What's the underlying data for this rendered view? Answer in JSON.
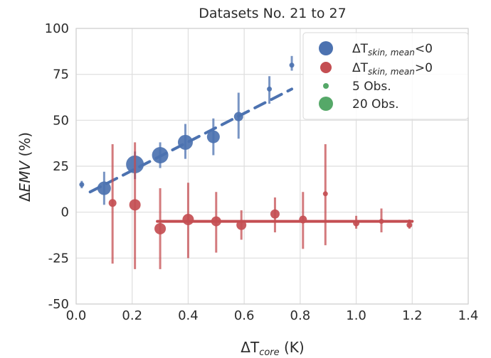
{
  "chart_data": {
    "type": "scatter",
    "title": "Datasets No. 21 to 27",
    "xlabel": {
      "main": "ΔT",
      "sub": "core",
      "rest": " (K)"
    },
    "ylabel": {
      "main": "Δ",
      "italic": "EMV",
      "rest": " (%)"
    },
    "xlim": [
      0.0,
      1.4
    ],
    "ylim": [
      -50,
      100
    ],
    "xticks": [
      0.0,
      0.2,
      0.4,
      0.6,
      0.8,
      1.0,
      1.2,
      1.4
    ],
    "xtick_labels": [
      "0.0",
      "0.2",
      "0.4",
      "0.6",
      "0.8",
      "1.0",
      "1.2",
      "1.4"
    ],
    "yticks": [
      -50,
      -25,
      0,
      25,
      50,
      75,
      100
    ],
    "ytick_labels": [
      "-50",
      "-25",
      "0",
      "25",
      "50",
      "75",
      "100"
    ],
    "grid": true,
    "legend_position": "top-right",
    "series": [
      {
        "name": {
          "main": "ΔT",
          "sub": "skin, mean",
          "rest": "<0"
        },
        "color": "#4c72b0",
        "points": [
          {
            "x": 0.02,
            "y": 15,
            "ylo": 13,
            "yhi": 17,
            "n": 2
          },
          {
            "x": 0.1,
            "y": 13,
            "ylo": 4,
            "yhi": 22,
            "n": 14
          },
          {
            "x": 0.21,
            "y": 26,
            "ylo": 18,
            "yhi": 33,
            "n": 20
          },
          {
            "x": 0.3,
            "y": 31,
            "ylo": 24,
            "yhi": 38,
            "n": 18
          },
          {
            "x": 0.39,
            "y": 38,
            "ylo": 29,
            "yhi": 48,
            "n": 16
          },
          {
            "x": 0.49,
            "y": 41,
            "ylo": 31,
            "yhi": 51,
            "n": 13
          },
          {
            "x": 0.58,
            "y": 52,
            "ylo": 40,
            "yhi": 65,
            "n": 8
          },
          {
            "x": 0.69,
            "y": 67,
            "ylo": 59,
            "yhi": 74,
            "n": 2
          },
          {
            "x": 0.77,
            "y": 80,
            "ylo": 77,
            "yhi": 85,
            "n": 2
          }
        ],
        "fit": {
          "x": [
            0.05,
            0.77
          ],
          "y": [
            11,
            67
          ]
        }
      },
      {
        "name": {
          "main": "ΔT",
          "sub": "skin, mean",
          "rest": ">0"
        },
        "color": "#c44e52",
        "points": [
          {
            "x": 0.13,
            "y": 5,
            "ylo": -28,
            "yhi": 37,
            "n": 6
          },
          {
            "x": 0.21,
            "y": 4,
            "ylo": -31,
            "yhi": 38,
            "n": 11
          },
          {
            "x": 0.3,
            "y": -9,
            "ylo": -31,
            "yhi": 13,
            "n": 11
          },
          {
            "x": 0.4,
            "y": -4,
            "ylo": -25,
            "yhi": 16,
            "n": 11
          },
          {
            "x": 0.5,
            "y": -5,
            "ylo": -22,
            "yhi": 11,
            "n": 9
          },
          {
            "x": 0.59,
            "y": -7,
            "ylo": -15,
            "yhi": 1,
            "n": 9
          },
          {
            "x": 0.71,
            "y": -1,
            "ylo": -11,
            "yhi": 8,
            "n": 8
          },
          {
            "x": 0.81,
            "y": -4,
            "ylo": -20,
            "yhi": 11,
            "n": 6
          },
          {
            "x": 0.89,
            "y": 10,
            "ylo": -18,
            "yhi": 37,
            "n": 2
          },
          {
            "x": 1.0,
            "y": -6,
            "ylo": -9,
            "yhi": -2,
            "n": 4
          },
          {
            "x": 1.09,
            "y": -5,
            "ylo": -11,
            "yhi": 2,
            "n": 2
          },
          {
            "x": 1.19,
            "y": -7,
            "ylo": -9,
            "yhi": -4,
            "n": 3
          }
        ],
        "fit": {
          "x": [
            0.29,
            1.2
          ],
          "y": [
            -5,
            -5
          ]
        }
      }
    ],
    "size_legend": [
      {
        "label": "5 Obs.",
        "n": 5,
        "color": "#55a868"
      },
      {
        "label": "20 Obs.",
        "n": 20,
        "color": "#55a868"
      }
    ]
  }
}
